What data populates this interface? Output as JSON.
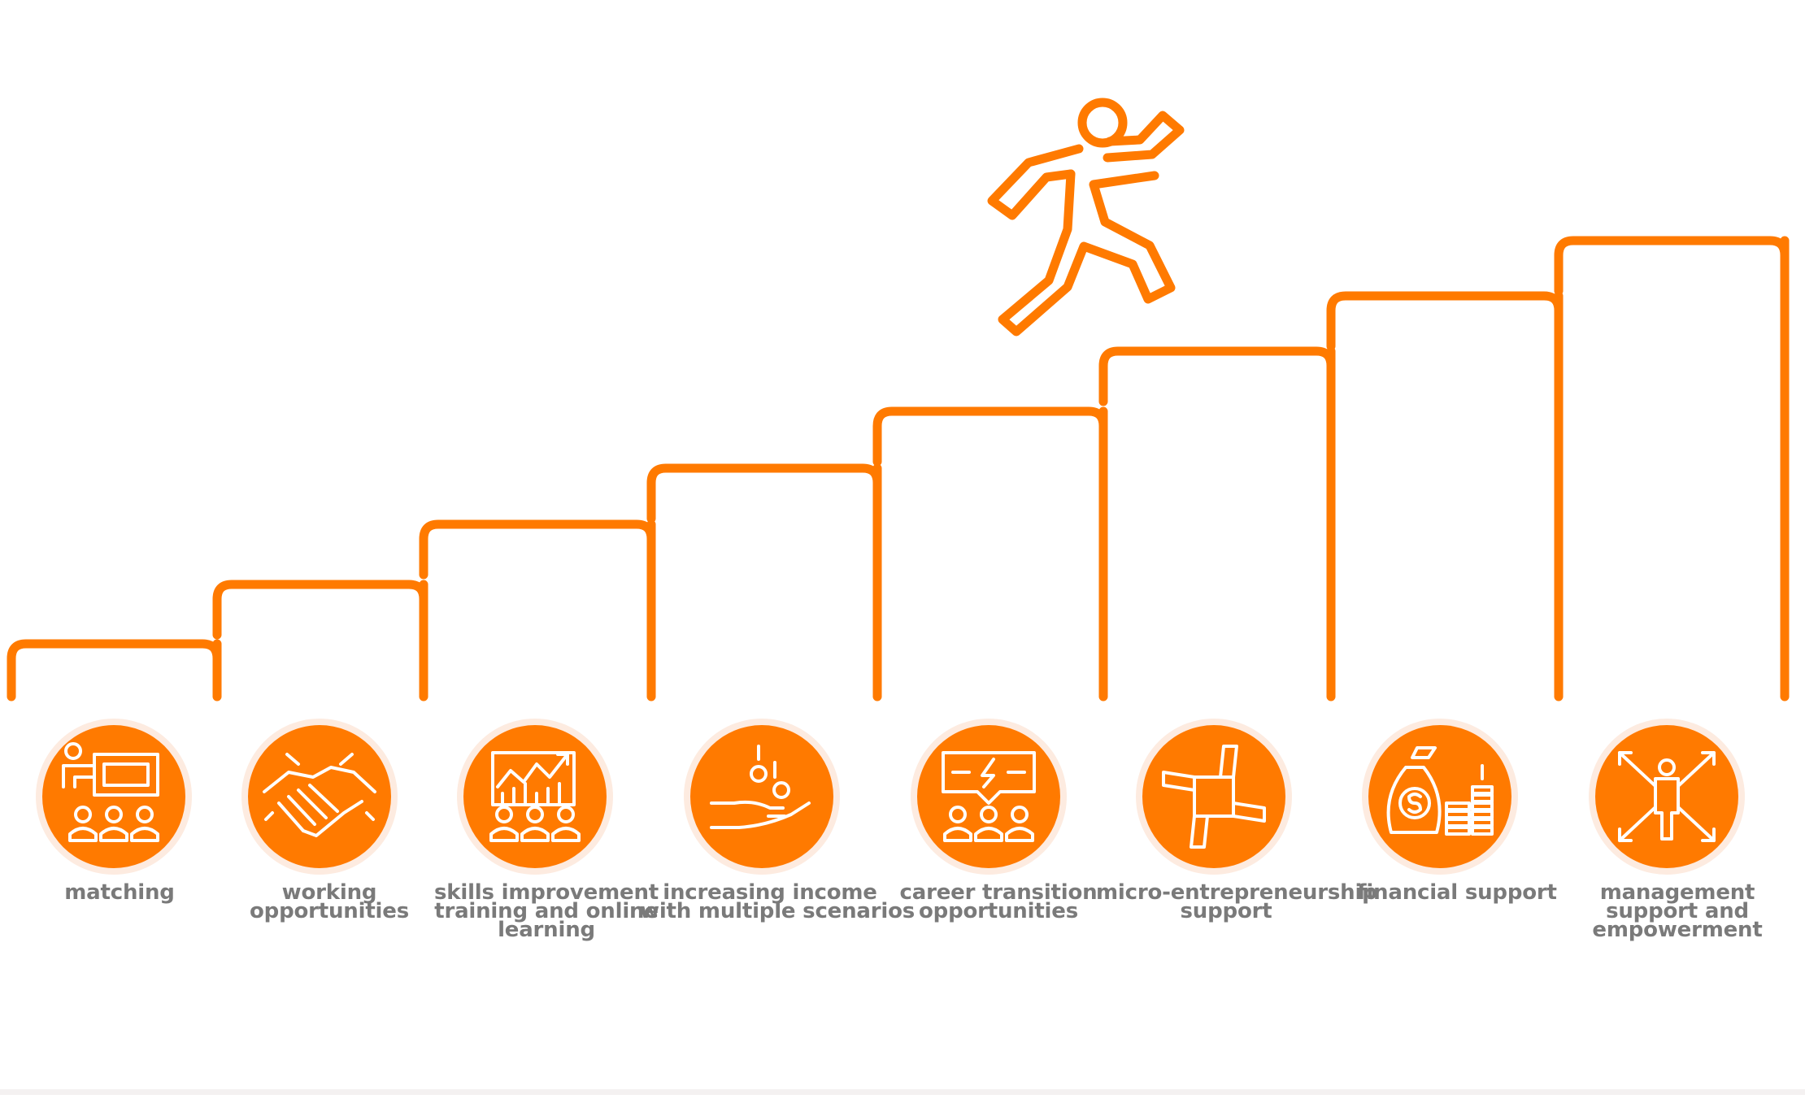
{
  "colors": {
    "accent": "#ff7a00",
    "halo": "#fdebe0",
    "label": "#7a7a7a",
    "background": "#ffffff"
  },
  "figure_icon": "running-person-icon",
  "steps": [
    {
      "icon": "presentation-icon",
      "label_lines": [
        "matching"
      ]
    },
    {
      "icon": "handshake-icon",
      "label_lines": [
        "working",
        "opportunities"
      ]
    },
    {
      "icon": "growth-chart-icon",
      "label_lines": [
        "skills improvement",
        "training and online",
        "learning"
      ]
    },
    {
      "icon": "hand-coins-icon",
      "label_lines": [
        "increasing income",
        "with multiple scenarios"
      ]
    },
    {
      "icon": "idea-board-icon",
      "label_lines": [
        "career transition",
        "opportunities"
      ]
    },
    {
      "icon": "joined-hands-icon",
      "label_lines": [
        "micro-entrepreneurship",
        "support"
      ]
    },
    {
      "icon": "money-bag-icon",
      "label_lines": [
        "financial support"
      ]
    },
    {
      "icon": "arrows-person-icon",
      "label_lines": [
        "management",
        "support and",
        "empowerment"
      ]
    }
  ]
}
